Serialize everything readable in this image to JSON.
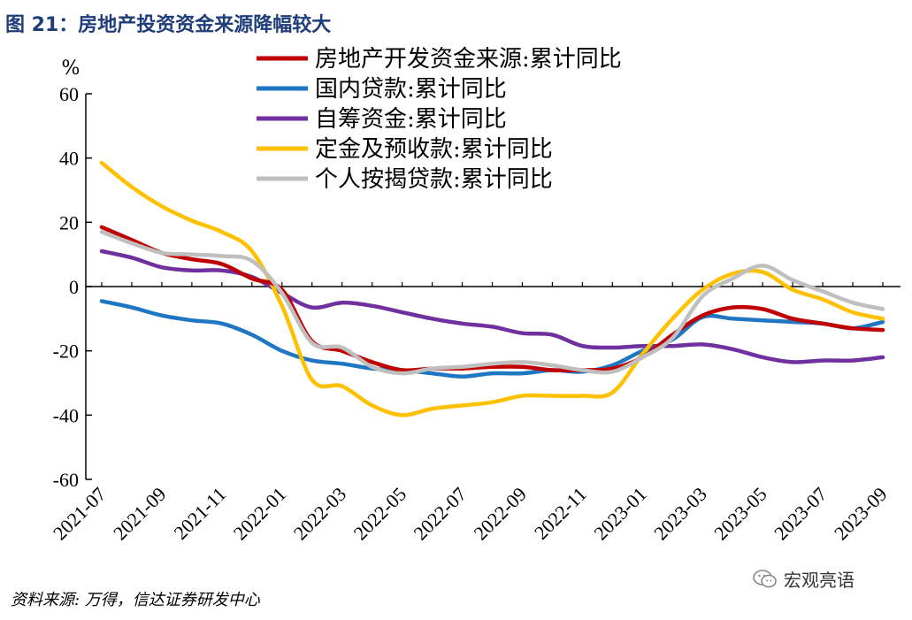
{
  "figure_title": "图 21：房地产投资资金来源降幅较大",
  "source_note": "资料来源: 万得，信达证券研发中心",
  "watermark": "宏观亮语",
  "chart_data": {
    "type": "line",
    "unit_label": "%",
    "ylim": [
      -60,
      60
    ],
    "yticks": [
      60,
      40,
      20,
      0,
      -20,
      -40,
      -60
    ],
    "x_labels": [
      "2021-07",
      "2021-09",
      "2021-11",
      "2022-01",
      "2022-03",
      "2022-05",
      "2022-07",
      "2022-09",
      "2022-11",
      "2023-01",
      "2023-03",
      "2023-05",
      "2023-07",
      "2023-09"
    ],
    "x": [
      "2021-07",
      "2021-08",
      "2021-09",
      "2021-10",
      "2021-11",
      "2021-12",
      "2022-01",
      "2022-02",
      "2022-03",
      "2022-04",
      "2022-05",
      "2022-06",
      "2022-07",
      "2022-08",
      "2022-09",
      "2022-10",
      "2022-11",
      "2022-12",
      "2023-01",
      "2023-02",
      "2023-03",
      "2023-04",
      "2023-05",
      "2023-06",
      "2023-07",
      "2023-08",
      "2023-09"
    ],
    "grid": false,
    "legend_position": "top-center",
    "series": [
      {
        "name": "房地产开发资金来源:累计同比",
        "color": "#c00000",
        "values": [
          18.5,
          14.5,
          10.5,
          8.5,
          7,
          2.5,
          -1,
          -17,
          -20,
          -23.5,
          -26,
          -25.5,
          -25.5,
          -25,
          -25,
          -26,
          -26,
          -25.5,
          -22,
          -15,
          -9,
          -6.5,
          -7,
          -10,
          -11.5,
          -13,
          -13.5
        ]
      },
      {
        "name": "国内贷款:累计同比",
        "color": "#1f77c4",
        "values": [
          -4.5,
          -6.5,
          -9,
          -10.5,
          -11.5,
          -15,
          -20,
          -23,
          -24,
          -25.5,
          -26,
          -27,
          -28,
          -27,
          -27,
          -26,
          -26.5,
          -24.5,
          -20,
          -16.5,
          -9.5,
          -10,
          -10.5,
          -11,
          -11.5,
          -13,
          -11
        ]
      },
      {
        "name": "自筹资金:累计同比",
        "color": "#7030a0",
        "values": [
          11,
          9,
          6,
          5,
          5,
          3,
          -2,
          -6.5,
          -5,
          -6,
          -8,
          -10,
          -11.5,
          -12.5,
          -14.5,
          -15,
          -18.5,
          -19,
          -18.5,
          -18.5,
          -18,
          -19.5,
          -22,
          -23.5,
          -23,
          -23,
          -22
        ]
      },
      {
        "name": "定金及预收款:累计同比",
        "color": "#ffc000",
        "values": [
          38.5,
          31,
          25,
          20.5,
          17,
          11,
          -6,
          -29,
          -31,
          -37,
          -40,
          -38,
          -37,
          -36,
          -34,
          -34,
          -34,
          -33,
          -21,
          -10,
          -1,
          4,
          4.5,
          -1,
          -4,
          -8,
          -10
        ]
      },
      {
        "name": "个人按揭贷款:累计同比",
        "color": "#bfbfbf",
        "values": [
          17,
          13.5,
          10.5,
          10,
          9.5,
          8,
          -2,
          -17.5,
          -19,
          -25,
          -27,
          -25.5,
          -25,
          -24,
          -23.5,
          -24.5,
          -26,
          -26.5,
          -22,
          -16,
          -3,
          2.5,
          6.5,
          2,
          -1.5,
          -5,
          -7
        ]
      }
    ]
  }
}
